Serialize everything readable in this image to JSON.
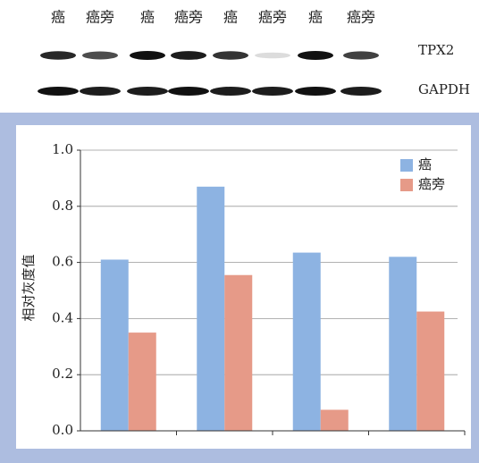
{
  "blot": {
    "lanes": [
      "癌",
      "癌旁",
      "癌",
      "癌旁",
      "癌",
      "癌旁",
      "癌",
      "癌旁"
    ],
    "rows": [
      "TPX2",
      "GAPDH"
    ]
  },
  "chart_data": {
    "type": "bar",
    "y_label": "相对灰度值",
    "categories": [
      null,
      null,
      null,
      null
    ],
    "series": [
      {
        "name": "癌",
        "color": "#8db3e2",
        "values": [
          0.61,
          0.87,
          0.635,
          0.62
        ]
      },
      {
        "name": "癌旁",
        "color": "#e69a88",
        "values": [
          0.35,
          0.555,
          0.075,
          0.425
        ]
      }
    ],
    "ylim": [
      0,
      1.0
    ],
    "yticks": [
      {
        "value": 0,
        "label": "0.0"
      },
      {
        "value": 0.2,
        "label": "0.2"
      },
      {
        "value": 0.4,
        "label": "0.4"
      },
      {
        "value": 0.6,
        "label": "0.6"
      },
      {
        "value": 0.8,
        "label": "0.8"
      },
      {
        "value": 1.0,
        "label": "1.0"
      }
    ],
    "grid": true,
    "legend": "upper right"
  }
}
